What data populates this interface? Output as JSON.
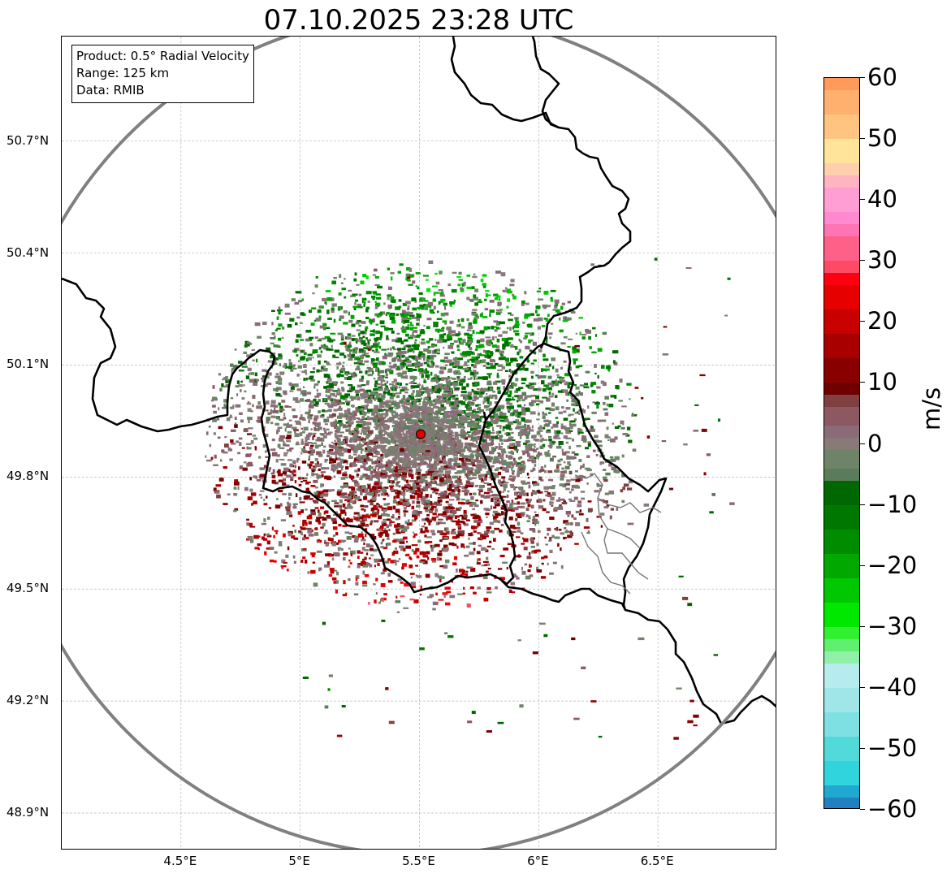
{
  "title": "07.10.2025 23:28 UTC",
  "info_box": {
    "lines": [
      "Product: 0.5° Radial Velocity",
      "Range: 125 km",
      "Data: RMIB"
    ]
  },
  "map": {
    "extent": {
      "lon_min": 4.0,
      "lon_max": 7.0,
      "lat_min": 48.8,
      "lat_max": 50.98
    },
    "radar_site": {
      "lon": 5.505,
      "lat": 49.915,
      "marker_color": "#e00000"
    },
    "range_ring_km": 125,
    "range_ring_color": "#808080",
    "lat_ticks": [
      {
        "value": 50.7,
        "label": "50.7°N"
      },
      {
        "value": 50.4,
        "label": "50.4°N"
      },
      {
        "value": 50.1,
        "label": "50.1°N"
      },
      {
        "value": 49.8,
        "label": "49.8°N"
      },
      {
        "value": 49.5,
        "label": "49.5°N"
      },
      {
        "value": 49.2,
        "label": "49.2°N"
      },
      {
        "value": 48.9,
        "label": "48.9°N"
      }
    ],
    "lon_ticks": [
      {
        "value": 4.5,
        "label": "4.5°E"
      },
      {
        "value": 5.0,
        "label": "5°E"
      },
      {
        "value": 5.5,
        "label": "5.5°E"
      },
      {
        "value": 6.0,
        "label": "6°E"
      },
      {
        "value": 6.5,
        "label": "6.5°E"
      }
    ],
    "gridlines": true,
    "echo_regions": [
      {
        "name": "north inbound (green)",
        "lon": 5.85,
        "lat": 50.15,
        "velocity": -12
      },
      {
        "name": "south outbound (red)",
        "lon": 5.35,
        "lat": 49.68,
        "velocity": 12
      },
      {
        "name": "near-zero core (grey)",
        "lon": 5.55,
        "lat": 49.9,
        "velocity": 0
      }
    ]
  },
  "colorbar": {
    "label": "m/s",
    "vmin": -60,
    "vmax": 60,
    "ticks": [
      {
        "value": 60,
        "label": "60"
      },
      {
        "value": 50,
        "label": "50"
      },
      {
        "value": 40,
        "label": "40"
      },
      {
        "value": 30,
        "label": "30"
      },
      {
        "value": 20,
        "label": "20"
      },
      {
        "value": 10,
        "label": "10"
      },
      {
        "value": 0,
        "label": "0"
      },
      {
        "value": -10,
        "label": "−10"
      },
      {
        "value": -20,
        "label": "−20"
      },
      {
        "value": -30,
        "label": "−30"
      },
      {
        "value": -40,
        "label": "−40"
      },
      {
        "value": -50,
        "label": "−50"
      },
      {
        "value": -60,
        "label": "−60"
      }
    ],
    "bands": [
      {
        "from": 58,
        "to": 60,
        "color": "#ff9a5a"
      },
      {
        "from": 54,
        "to": 58,
        "color": "#ffb06e"
      },
      {
        "from": 50,
        "to": 54,
        "color": "#ffc580"
      },
      {
        "from": 46,
        "to": 50,
        "color": "#ffe49a"
      },
      {
        "from": 44,
        "to": 46,
        "color": "#ffcfae"
      },
      {
        "from": 42,
        "to": 44,
        "color": "#ffb4bf"
      },
      {
        "from": 38,
        "to": 42,
        "color": "#ff9ed2"
      },
      {
        "from": 36,
        "to": 38,
        "color": "#ff8ad0"
      },
      {
        "from": 34,
        "to": 36,
        "color": "#ff74b4"
      },
      {
        "from": 30,
        "to": 34,
        "color": "#ff6088"
      },
      {
        "from": 28,
        "to": 30,
        "color": "#ff4a66"
      },
      {
        "from": 26,
        "to": 28,
        "color": "#ff0010"
      },
      {
        "from": 22,
        "to": 26,
        "color": "#e60000"
      },
      {
        "from": 18,
        "to": 22,
        "color": "#c80000"
      },
      {
        "from": 14,
        "to": 18,
        "color": "#a80000"
      },
      {
        "from": 10,
        "to": 14,
        "color": "#880000"
      },
      {
        "from": 8,
        "to": 10,
        "color": "#700000"
      },
      {
        "from": 6,
        "to": 8,
        "color": "#804040"
      },
      {
        "from": 3,
        "to": 6,
        "color": "#8c5862"
      },
      {
        "from": 1,
        "to": 3,
        "color": "#8a6b78"
      },
      {
        "from": -1,
        "to": 1,
        "color": "#877a78"
      },
      {
        "from": -4,
        "to": -1,
        "color": "#6e8468"
      },
      {
        "from": -6,
        "to": -4,
        "color": "#5a7c5a"
      },
      {
        "from": -10,
        "to": -6,
        "color": "#006800"
      },
      {
        "from": -14,
        "to": -10,
        "color": "#007800"
      },
      {
        "from": -18,
        "to": -14,
        "color": "#008c00"
      },
      {
        "from": -22,
        "to": -18,
        "color": "#00a800"
      },
      {
        "from": -26,
        "to": -22,
        "color": "#00c800"
      },
      {
        "from": -30,
        "to": -26,
        "color": "#00e800"
      },
      {
        "from": -32,
        "to": -30,
        "color": "#30f030"
      },
      {
        "from": -34,
        "to": -32,
        "color": "#60f070"
      },
      {
        "from": -36,
        "to": -34,
        "color": "#90f0a8"
      },
      {
        "from": -40,
        "to": -36,
        "color": "#b6ecee"
      },
      {
        "from": -44,
        "to": -40,
        "color": "#a0e6e8"
      },
      {
        "from": -48,
        "to": -44,
        "color": "#7ee0e2"
      },
      {
        "from": -52,
        "to": -48,
        "color": "#52dada"
      },
      {
        "from": -56,
        "to": -52,
        "color": "#30d4dc"
      },
      {
        "from": -58,
        "to": -56,
        "color": "#20a8d0"
      },
      {
        "from": -60,
        "to": -58,
        "color": "#2080c0"
      }
    ]
  }
}
